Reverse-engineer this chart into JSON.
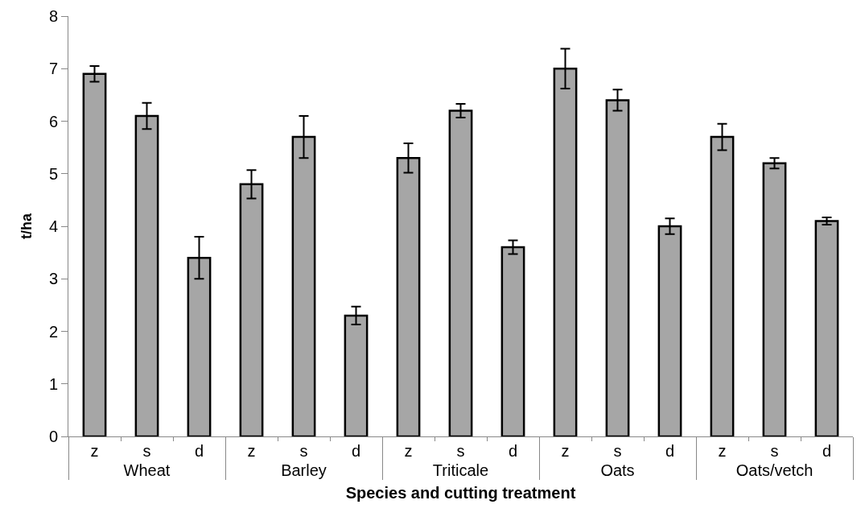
{
  "chart_data": {
    "type": "bar",
    "xlabel": "Species and cutting treatment",
    "ylabel": "t/ha",
    "categories": [
      "z",
      "s",
      "d",
      "z",
      "s",
      "d",
      "z",
      "s",
      "d",
      "z",
      "s",
      "d",
      "z",
      "s",
      "d"
    ],
    "annotations": [
      "Wheat",
      "Barley",
      "Triticale",
      "Oats",
      "Oats/vetch"
    ],
    "values": [
      6.9,
      6.1,
      3.4,
      4.8,
      5.7,
      2.3,
      5.3,
      6.2,
      3.6,
      7.0,
      6.4,
      4.0,
      5.7,
      5.2,
      4.1
    ],
    "errors": [
      0.15,
      0.25,
      0.4,
      0.27,
      0.4,
      0.17,
      0.28,
      0.13,
      0.13,
      0.38,
      0.2,
      0.15,
      0.25,
      0.1,
      0.07
    ],
    "color": "#a6a6a6",
    "ylim": [
      0,
      8
    ],
    "yticks": [
      0,
      1,
      2,
      3,
      4,
      5,
      6,
      7,
      8
    ],
    "grid": false
  }
}
